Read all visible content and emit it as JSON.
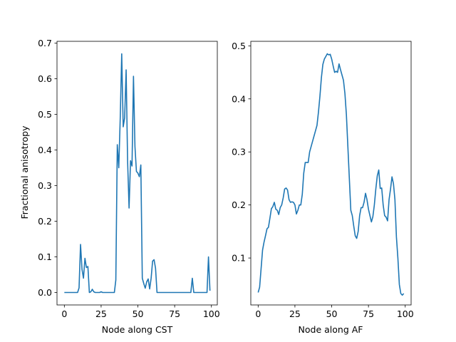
{
  "chart_data": [
    {
      "type": "line",
      "xlabel": "Node along CST",
      "ylabel": "Fractional anisotropy",
      "xlim": [
        -5,
        104
      ],
      "ylim": [
        -0.035,
        0.705
      ],
      "xticks": [
        0,
        25,
        50,
        75,
        100
      ],
      "yticks": [
        0.0,
        0.1,
        0.2,
        0.3,
        0.4,
        0.5,
        0.6,
        0.7
      ],
      "ytick_format": 1,
      "grid": false,
      "line_color": "#1f77b4",
      "series": [
        {
          "x": [
            0,
            1,
            2,
            3,
            4,
            5,
            6,
            7,
            8,
            9,
            10,
            11,
            12,
            13,
            14,
            15,
            16,
            17,
            18,
            19,
            20,
            21,
            22,
            23,
            24,
            25,
            26,
            27,
            28,
            29,
            30,
            31,
            32,
            33,
            34,
            35,
            36,
            37,
            38,
            39,
            40,
            41,
            42,
            43,
            44,
            45,
            46,
            47,
            48,
            49,
            50,
            51,
            52,
            53,
            54,
            55,
            56,
            57,
            58,
            59,
            60,
            61,
            62,
            63,
            64,
            65,
            66,
            67,
            68,
            69,
            70,
            71,
            72,
            73,
            74,
            75,
            76,
            77,
            78,
            79,
            80,
            81,
            82,
            83,
            84,
            85,
            86,
            87,
            88,
            89,
            90,
            91,
            92,
            93,
            94,
            95,
            96,
            97,
            98,
            99
          ],
          "y": [
            0.0,
            0.0,
            0.0,
            0.0,
            0.0,
            0.0,
            0.0,
            0.0,
            0.0,
            0.0,
            0.013,
            0.135,
            0.065,
            0.04,
            0.096,
            0.07,
            0.073,
            0.0,
            0.002,
            0.009,
            0.002,
            0.0,
            0.0,
            0.0,
            0.0,
            0.002,
            0.0,
            0.0,
            0.0,
            0.0,
            0.0,
            0.0,
            0.0,
            0.0,
            0.0,
            0.035,
            0.415,
            0.35,
            0.49,
            0.67,
            0.465,
            0.49,
            0.625,
            0.37,
            0.237,
            0.37,
            0.355,
            0.607,
            0.41,
            0.34,
            0.335,
            0.325,
            0.358,
            0.04,
            0.025,
            0.012,
            0.03,
            0.038,
            0.01,
            0.04,
            0.088,
            0.092,
            0.068,
            0.0,
            0.0,
            0.0,
            0.0,
            0.0,
            0.0,
            0.0,
            0.0,
            0.0,
            0.0,
            0.0,
            0.0,
            0.0,
            0.0,
            0.0,
            0.0,
            0.0,
            0.0,
            0.0,
            0.0,
            0.0,
            0.0,
            0.0,
            0.0,
            0.04,
            0.0,
            0.0,
            0.0,
            0.0,
            0.0,
            0.0,
            0.0,
            0.0,
            0.0,
            0.0,
            0.1,
            0.005
          ]
        }
      ]
    },
    {
      "type": "line",
      "xlabel": "Node along AF",
      "ylabel": "",
      "xlim": [
        -5,
        104
      ],
      "ylim": [
        0.0115,
        0.5085
      ],
      "xticks": [
        0,
        25,
        50,
        75,
        100
      ],
      "yticks": [
        0.1,
        0.2,
        0.3,
        0.4,
        0.5
      ],
      "ytick_format": 1,
      "grid": false,
      "line_color": "#1f77b4",
      "series": [
        {
          "x": [
            0,
            1,
            2,
            3,
            4,
            5,
            6,
            7,
            8,
            9,
            10,
            11,
            12,
            13,
            14,
            15,
            16,
            17,
            18,
            19,
            20,
            21,
            22,
            23,
            24,
            25,
            26,
            27,
            28,
            29,
            30,
            31,
            32,
            33,
            34,
            35,
            36,
            37,
            38,
            39,
            40,
            41,
            42,
            43,
            44,
            45,
            46,
            47,
            48,
            49,
            50,
            51,
            52,
            53,
            54,
            55,
            56,
            57,
            58,
            59,
            60,
            61,
            62,
            63,
            64,
            65,
            66,
            67,
            68,
            69,
            70,
            71,
            72,
            73,
            74,
            75,
            76,
            77,
            78,
            79,
            80,
            81,
            82,
            83,
            84,
            85,
            86,
            87,
            88,
            89,
            90,
            91,
            92,
            93,
            94,
            95,
            96,
            97,
            98,
            99
          ],
          "y": [
            0.035,
            0.045,
            0.08,
            0.115,
            0.13,
            0.142,
            0.155,
            0.158,
            0.175,
            0.193,
            0.197,
            0.205,
            0.192,
            0.19,
            0.182,
            0.195,
            0.2,
            0.213,
            0.23,
            0.232,
            0.228,
            0.21,
            0.205,
            0.206,
            0.205,
            0.2,
            0.183,
            0.19,
            0.2,
            0.2,
            0.22,
            0.26,
            0.28,
            0.28,
            0.28,
            0.3,
            0.31,
            0.32,
            0.33,
            0.34,
            0.35,
            0.375,
            0.405,
            0.44,
            0.465,
            0.475,
            0.48,
            0.485,
            0.483,
            0.484,
            0.475,
            0.462,
            0.45,
            0.452,
            0.45,
            0.466,
            0.455,
            0.445,
            0.435,
            0.41,
            0.37,
            0.31,
            0.25,
            0.19,
            0.18,
            0.16,
            0.142,
            0.137,
            0.15,
            0.18,
            0.195,
            0.195,
            0.205,
            0.222,
            0.21,
            0.192,
            0.18,
            0.168,
            0.178,
            0.2,
            0.23,
            0.255,
            0.266,
            0.231,
            0.232,
            0.2,
            0.18,
            0.177,
            0.17,
            0.21,
            0.23,
            0.253,
            0.24,
            0.21,
            0.14,
            0.1,
            0.05,
            0.033,
            0.03,
            0.033
          ]
        }
      ]
    }
  ]
}
